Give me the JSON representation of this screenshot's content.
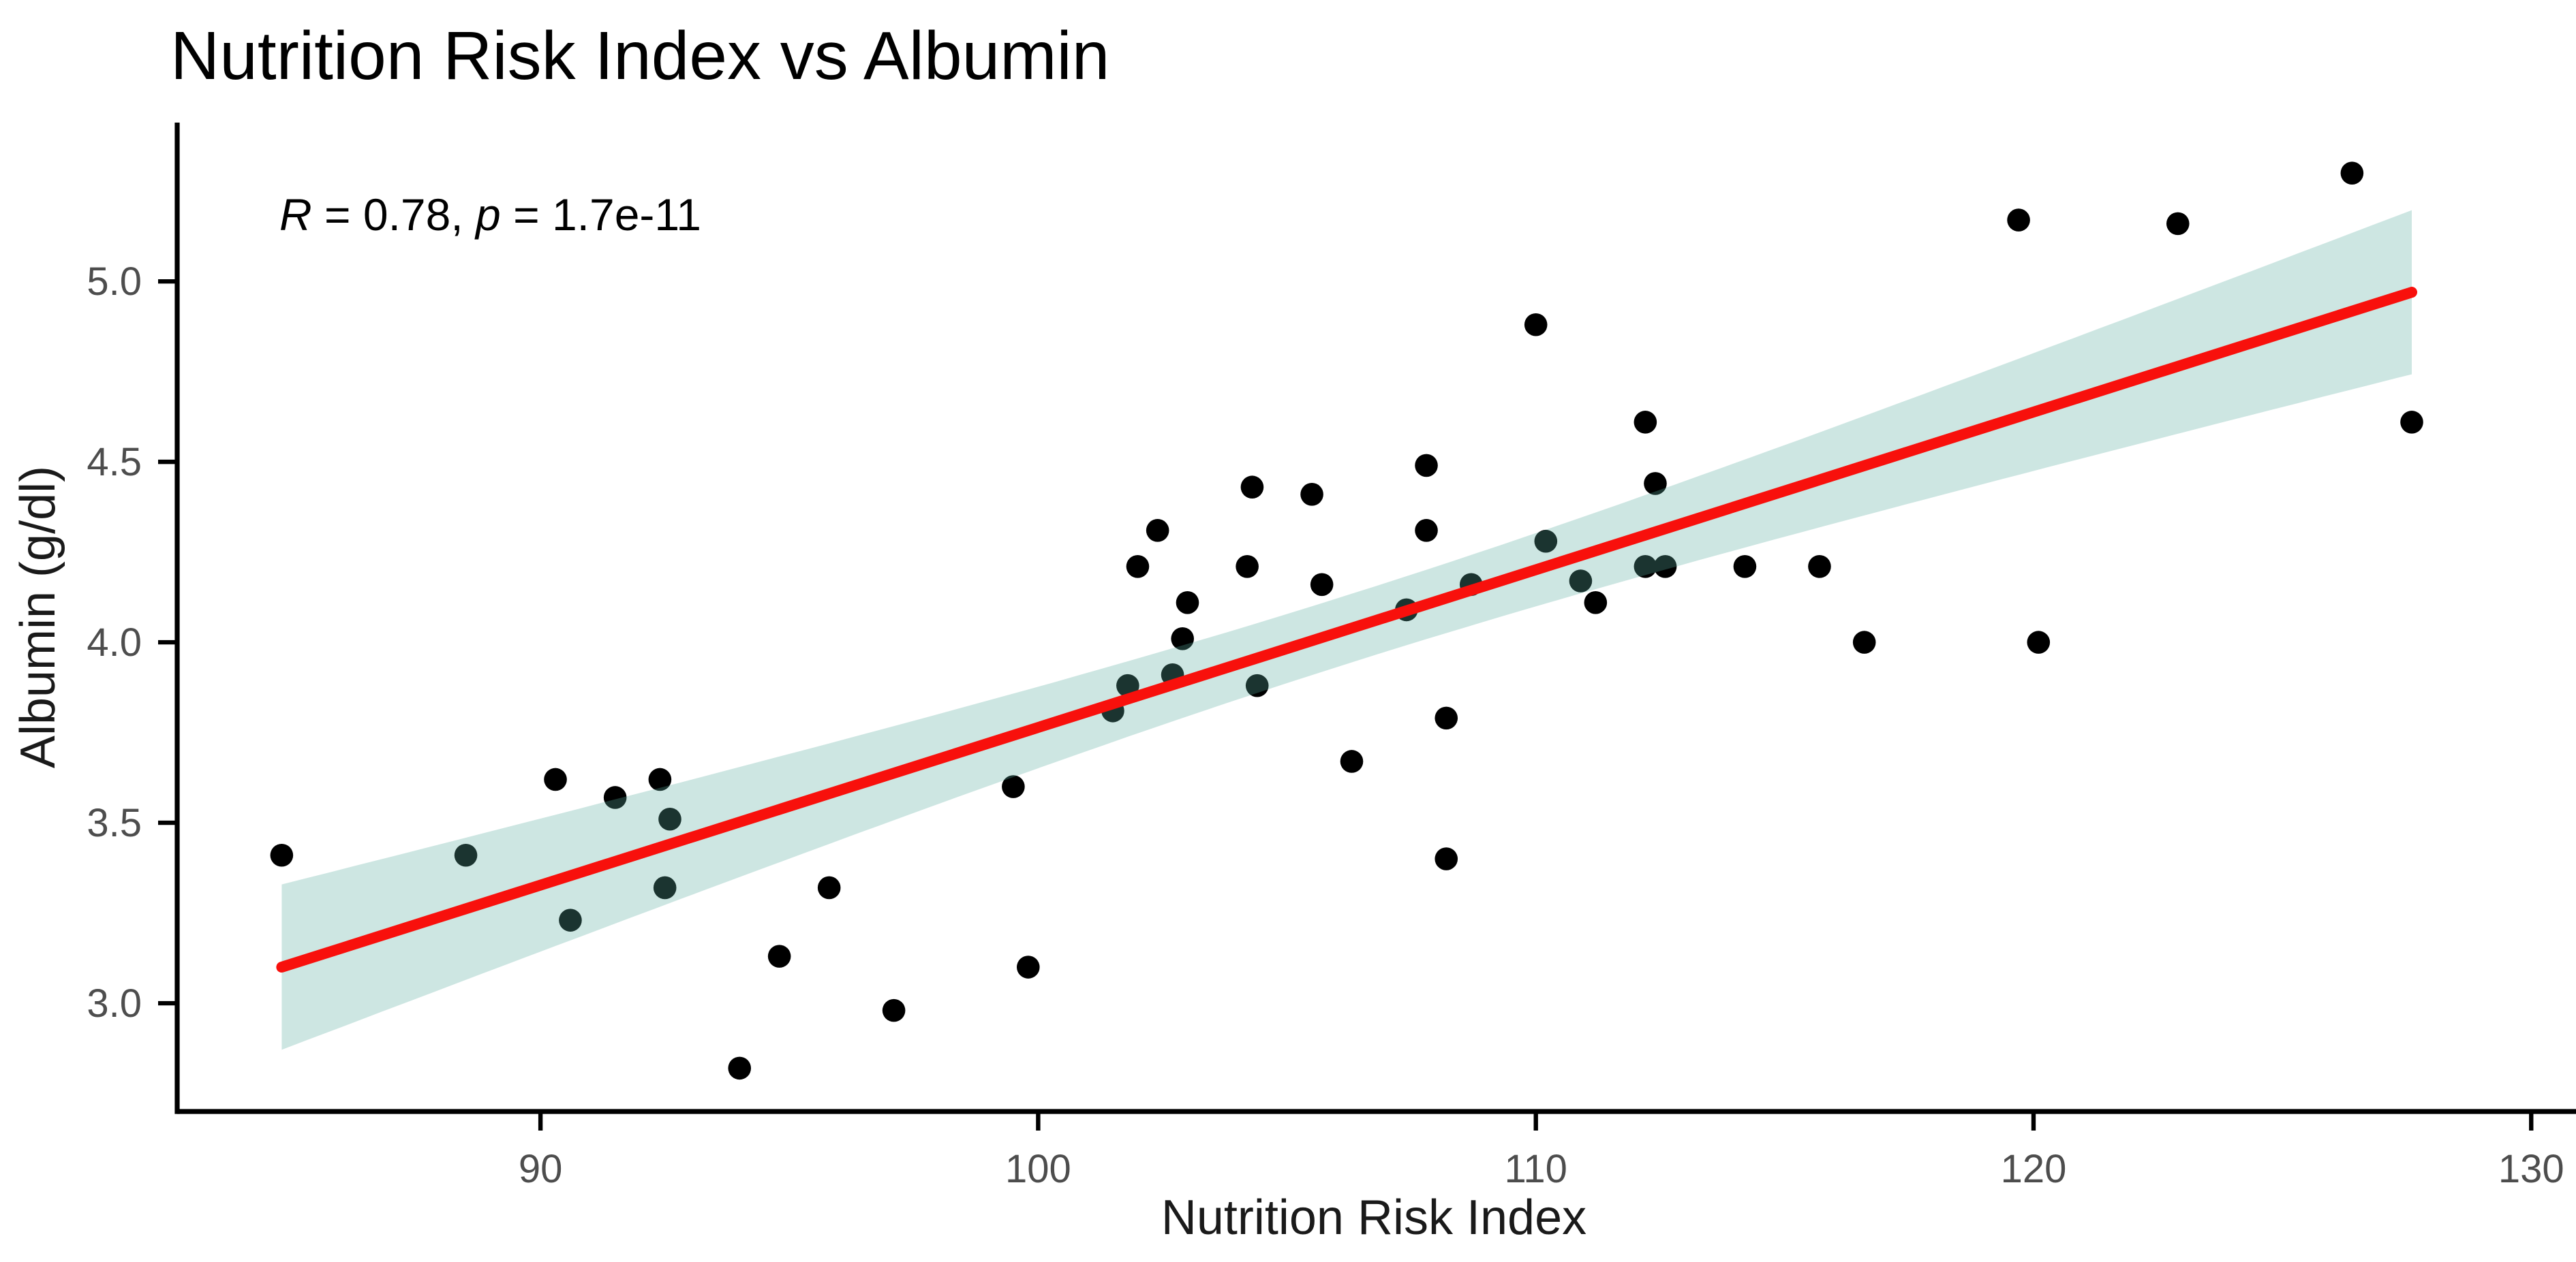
{
  "title": "Nutrition Risk Index vs Albumin",
  "annotation": {
    "full_text": "R = 0.78, p = 1.7e-11",
    "r_symbol": "R",
    "r_value": " = 0.78, ",
    "p_symbol": "p",
    "p_value": " = 1.7e-11"
  },
  "colors": {
    "background": "#ffffff",
    "point": "#000000",
    "band": "#58ac9e",
    "band_opacity": 0.3,
    "line": "#f8100c",
    "axis": "#000000",
    "tick_label": "#4d4d4d",
    "text": "#000000"
  },
  "chart_data": {
    "type": "scatter",
    "title": "Nutrition Risk Index vs Albumin",
    "xlabel": "Nutrition Risk Index",
    "ylabel": "Albumin (g/dl)",
    "x_ticks": [
      90,
      100,
      110,
      120,
      130
    ],
    "y_ticks": [
      "3.0",
      "3.5",
      "4.0",
      "4.5",
      "5.0"
    ],
    "xlim": [
      82.7,
      130.9
    ],
    "ylim": [
      2.7,
      5.44
    ],
    "grid": false,
    "legend": false,
    "points": [
      [
        84.8,
        3.41
      ],
      [
        88.5,
        3.41
      ],
      [
        90.3,
        3.62
      ],
      [
        90.6,
        3.23
      ],
      [
        91.5,
        3.57
      ],
      [
        92.4,
        3.62
      ],
      [
        92.6,
        3.51
      ],
      [
        92.5,
        3.32
      ],
      [
        94.0,
        2.82
      ],
      [
        94.8,
        3.13
      ],
      [
        95.8,
        3.32
      ],
      [
        97.1,
        2.98
      ],
      [
        99.5,
        3.6
      ],
      [
        99.8,
        3.1
      ],
      [
        101.5,
        3.81
      ],
      [
        101.8,
        3.88
      ],
      [
        102.0,
        4.21
      ],
      [
        102.4,
        4.31
      ],
      [
        102.7,
        3.91
      ],
      [
        102.9,
        4.01
      ],
      [
        103.0,
        4.11
      ],
      [
        104.2,
        4.21
      ],
      [
        104.3,
        4.43
      ],
      [
        104.4,
        3.88
      ],
      [
        105.5,
        4.41
      ],
      [
        105.7,
        4.16
      ],
      [
        106.3,
        3.67
      ],
      [
        107.4,
        4.09
      ],
      [
        107.8,
        4.31
      ],
      [
        107.8,
        4.49
      ],
      [
        108.2,
        3.79
      ],
      [
        108.2,
        3.4
      ],
      [
        108.7,
        4.16
      ],
      [
        110.0,
        4.88
      ],
      [
        110.2,
        4.28
      ],
      [
        110.9,
        4.17
      ],
      [
        111.2,
        4.11
      ],
      [
        112.2,
        4.61
      ],
      [
        112.2,
        4.21
      ],
      [
        112.6,
        4.21
      ],
      [
        112.4,
        4.44
      ],
      [
        114.2,
        4.21
      ],
      [
        115.7,
        4.21
      ],
      [
        116.6,
        4.0
      ],
      [
        119.7,
        5.17
      ],
      [
        120.1,
        4.0
      ],
      [
        122.9,
        5.16
      ],
      [
        126.4,
        5.3
      ],
      [
        127.6,
        4.61
      ]
    ],
    "trend": {
      "type": "linear_fit",
      "x_start": 84.8,
      "x_end": 127.6,
      "y_start": 3.1,
      "y_end": 4.97
    },
    "ci_band": {
      "half_width_at_center": 0.095,
      "center_x": 106.3,
      "spread": 9.8
    },
    "correlation": {
      "R": "0.78",
      "p": "1.7e-11"
    }
  }
}
